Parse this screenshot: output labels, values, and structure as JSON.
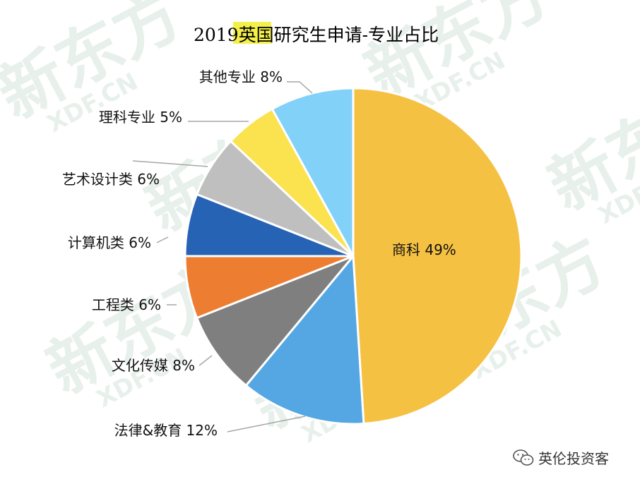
{
  "chart_data": {
    "type": "pie",
    "title": {
      "year": "2019",
      "highlight": "英国",
      "rest": "研究生申请-专业占比"
    },
    "slices": [
      {
        "name": "商科",
        "value": 49,
        "label": "商科 49%",
        "color": "#F5C142"
      },
      {
        "name": "法律&教育",
        "value": 12,
        "label": "法律&教育 12%",
        "color": "#55A7E3"
      },
      {
        "name": "文化传媒",
        "value": 8,
        "label": "文化传媒 8%",
        "color": "#7F7F7F"
      },
      {
        "name": "工程类",
        "value": 6,
        "label": "工程类 6%",
        "color": "#ED7D31"
      },
      {
        "name": "计算机类",
        "value": 6,
        "label": "计算机类 6%",
        "color": "#2763B5"
      },
      {
        "name": "艺术设计类",
        "value": 6,
        "label": "艺术设计类 6%",
        "color": "#BFBFBF"
      },
      {
        "name": "理科专业",
        "value": 5,
        "label": "理科专业 5%",
        "color": "#FBE24F"
      },
      {
        "name": "其他专业",
        "value": 8,
        "label": "其他专业 8%",
        "color": "#82D1F8"
      }
    ],
    "title_highlight_color": "#F4F04A"
  },
  "watermark": {
    "text": "新东方",
    "sub": "XDF.CN",
    "color": "#E8F0EC"
  },
  "credit": {
    "icon": "wechat-icon",
    "text": "英伦投资客"
  }
}
